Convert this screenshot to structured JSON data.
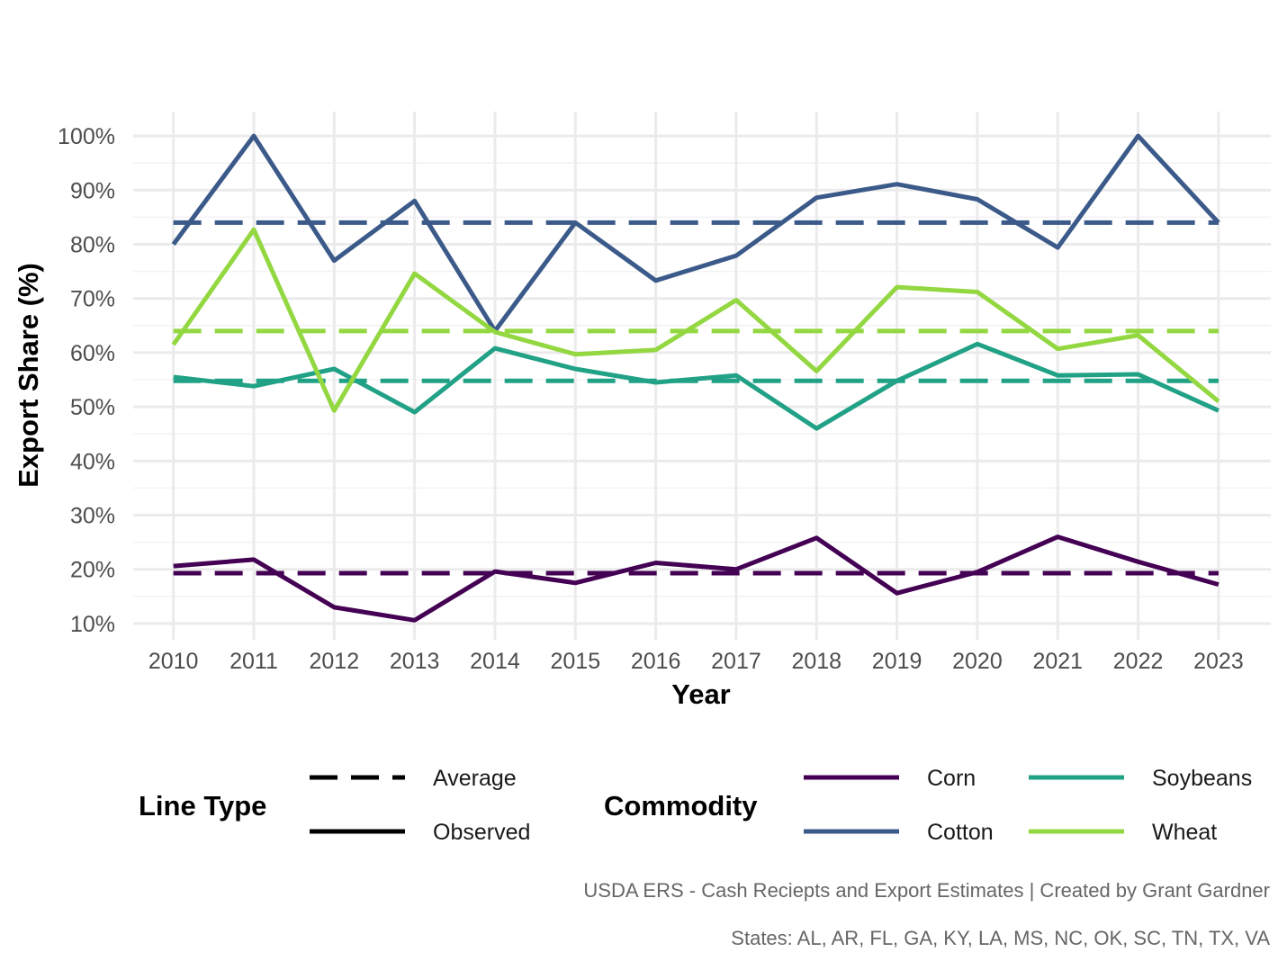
{
  "chart_data": {
    "type": "line",
    "title": "",
    "xlabel": "Year",
    "ylabel": "Export Share (%)",
    "x": [
      2010,
      2011,
      2012,
      2013,
      2014,
      2015,
      2016,
      2017,
      2018,
      2019,
      2020,
      2021,
      2022,
      2023
    ],
    "x_tick_labels": [
      "2010",
      "2011",
      "2012",
      "2013",
      "2014",
      "2015",
      "2016",
      "2017",
      "2018",
      "2019",
      "2020",
      "2021",
      "2022",
      "2023"
    ],
    "y_ticks": [
      10,
      20,
      30,
      40,
      50,
      60,
      70,
      80,
      90,
      100
    ],
    "y_tick_labels": [
      "10%",
      "20%",
      "30%",
      "40%",
      "50%",
      "60%",
      "70%",
      "80%",
      "90%",
      "100%"
    ],
    "xlim": [
      2009.5,
      2023.65
    ],
    "ylim": [
      7,
      104.5
    ],
    "grid": true,
    "series": [
      {
        "name": "Corn",
        "color": "#440154",
        "values": [
          20.6,
          21.8,
          13.0,
          10.6,
          19.6,
          17.5,
          21.2,
          20.0,
          25.8,
          15.6,
          19.5,
          26.0,
          21.4,
          17.2
        ],
        "average": 19.3
      },
      {
        "name": "Cotton",
        "color": "#3b5a8a",
        "values": [
          80.0,
          100.0,
          77.0,
          88.0,
          64.0,
          84.0,
          73.3,
          77.9,
          88.6,
          91.1,
          88.3,
          79.4,
          100.0,
          84.0
        ],
        "average": 84.0
      },
      {
        "name": "Soybeans",
        "color": "#21a186",
        "values": [
          55.5,
          53.8,
          57.0,
          49.0,
          60.8,
          57.0,
          54.5,
          55.8,
          46.0,
          54.8,
          61.6,
          55.8,
          56.0,
          49.3
        ],
        "average": 54.8
      },
      {
        "name": "Wheat",
        "color": "#93d741",
        "values": [
          61.5,
          82.7,
          49.3,
          74.6,
          63.8,
          59.7,
          60.5,
          69.7,
          56.6,
          72.1,
          71.2,
          60.7,
          63.2,
          51.0
        ],
        "average": 64.0
      }
    ],
    "legend": {
      "placement": "bottom",
      "line_type_title": "Line Type",
      "line_types": [
        "Average",
        "Observed"
      ],
      "commodity_title": "Commodity",
      "commodities": [
        "Corn",
        "Cotton",
        "Soybeans",
        "Wheat"
      ]
    }
  },
  "caption": {
    "line1": "USDA ERS - Cash Reciepts and Export Estimates | Created by Grant Gardner",
    "line2": "States: AL, AR, FL, GA, KY, LA, MS, NC, OK, SC, TN, TX, VA"
  }
}
